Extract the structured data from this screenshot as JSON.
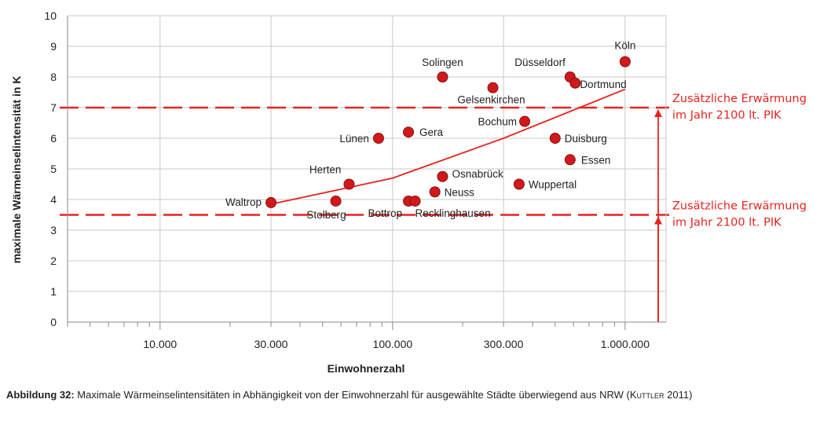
{
  "chart_data": {
    "type": "scatter",
    "xlabel": "Einwohnerzahl",
    "ylabel": "maximale Wärmeinselintensität in K",
    "x_scale": "log",
    "xlim": [
      4000,
      1500000
    ],
    "ylim": [
      0,
      10
    ],
    "x_ticks": [
      {
        "value": 10000,
        "label": "10.000"
      },
      {
        "value": 30000,
        "label": "30.000"
      },
      {
        "value": 100000,
        "label": "100.000"
      },
      {
        "value": 300000,
        "label": "300.000"
      },
      {
        "value": 1000000,
        "label": "1.000.000"
      }
    ],
    "y_ticks": [
      0,
      1,
      2,
      3,
      4,
      5,
      6,
      7,
      8,
      9,
      10
    ],
    "grid": true,
    "points": [
      {
        "name": "Waltrop",
        "x": 30000,
        "y": 3.9
      },
      {
        "name": "Stolberg",
        "x": 57000,
        "y": 3.95
      },
      {
        "name": "Herten",
        "x": 65000,
        "y": 4.5
      },
      {
        "name": "Lünen",
        "x": 87000,
        "y": 6.0
      },
      {
        "name": "Bottrop",
        "x": 117000,
        "y": 3.95
      },
      {
        "name": "Gera",
        "x": 117000,
        "y": 6.2
      },
      {
        "name": "Recklinghausen",
        "x": 125000,
        "y": 3.95
      },
      {
        "name": "Neuss",
        "x": 152000,
        "y": 4.25
      },
      {
        "name": "Osnabrück",
        "x": 164000,
        "y": 4.75
      },
      {
        "name": "Solingen",
        "x": 164000,
        "y": 8.0
      },
      {
        "name": "Gelsenkirchen",
        "x": 270000,
        "y": 7.65
      },
      {
        "name": "Wuppertal",
        "x": 350000,
        "y": 4.5
      },
      {
        "name": "Bochum",
        "x": 370000,
        "y": 6.55
      },
      {
        "name": "Duisburg",
        "x": 500000,
        "y": 6.0
      },
      {
        "name": "Düsseldorf",
        "x": 580000,
        "y": 8.0
      },
      {
        "name": "Essen",
        "x": 580000,
        "y": 5.3
      },
      {
        "name": "Dortmund",
        "x": 610000,
        "y": 7.8
      },
      {
        "name": "Köln",
        "x": 1000000,
        "y": 8.5
      }
    ],
    "trend_line": [
      {
        "x": 30000,
        "y": 3.85
      },
      {
        "x": 100000,
        "y": 4.7
      },
      {
        "x": 300000,
        "y": 6.0
      },
      {
        "x": 1000000,
        "y": 7.6
      }
    ],
    "reference_lines": [
      {
        "y": 7.0,
        "style": "dashed",
        "color": "#e8231f"
      },
      {
        "y": 3.5,
        "style": "dashed",
        "color": "#e8231f"
      }
    ],
    "annotations": [
      {
        "lines": [
          "Zusätzliche Erwärmung",
          "im Jahr 2100 lt. PIK"
        ],
        "y": 7.0
      },
      {
        "lines": [
          "Zusätzliche Erwärmung",
          "im Jahr 2100 lt. PIK"
        ],
        "y": 3.5
      }
    ],
    "colors": {
      "points": "#d0191b",
      "lines": "#e8231f"
    }
  },
  "caption": {
    "lead": "Abbildung 32:",
    "text": " Maximale Wärmeinselintensitäten in Abhängigkeit von der Einwohnerzahl für ausgewählte Städte überwiegend aus NRW (",
    "author": "Kuttler",
    "tail": " 2011)"
  }
}
